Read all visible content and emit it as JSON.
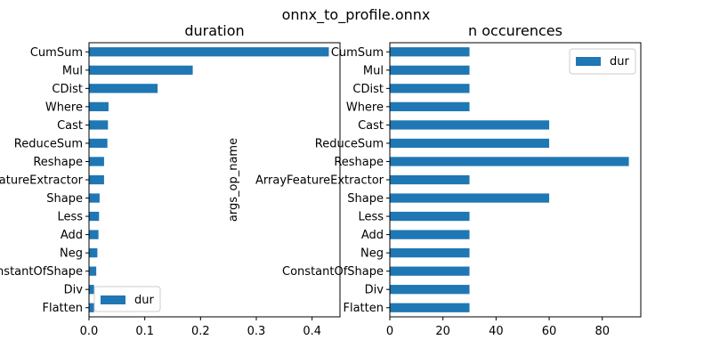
{
  "figure_title": "onnx_to_profile.onnx",
  "colors": {
    "bar": "#1f77b4",
    "axis": "#000000",
    "background": "#ffffff"
  },
  "chart_data": [
    {
      "type": "bar",
      "orientation": "horizontal",
      "title": "duration",
      "xlabel": "",
      "ylabel": "args_op_name",
      "categories": [
        "CumSum",
        "Mul",
        "CDist",
        "Where",
        "Cast",
        "ReduceSum",
        "Reshape",
        "ArrayFeatureExtractor",
        "Shape",
        "Less",
        "Add",
        "Neg",
        "ConstantOfShape",
        "Div",
        "Flatten"
      ],
      "series": [
        {
          "name": "dur",
          "values": [
            0.43,
            0.186,
            0.123,
            0.035,
            0.034,
            0.033,
            0.027,
            0.027,
            0.019,
            0.018,
            0.017,
            0.015,
            0.013,
            0.009,
            0.009
          ]
        }
      ],
      "xlim": [
        0,
        0.45
      ],
      "xticks": [
        0.0,
        0.1,
        0.2,
        0.3,
        0.4
      ],
      "xtick_labels": [
        "0.0",
        "0.1",
        "0.2",
        "0.3",
        "0.4"
      ],
      "legend": {
        "entries": [
          "dur"
        ],
        "position": "lower-left"
      }
    },
    {
      "type": "bar",
      "orientation": "horizontal",
      "title": "n occurences",
      "xlabel": "",
      "ylabel": "",
      "categories": [
        "CumSum",
        "Mul",
        "CDist",
        "Where",
        "Cast",
        "ReduceSum",
        "Reshape",
        "ArrayFeatureExtractor",
        "Shape",
        "Less",
        "Add",
        "Neg",
        "ConstantOfShape",
        "Div",
        "Flatten"
      ],
      "series": [
        {
          "name": "dur",
          "values": [
            30,
            30,
            30,
            30,
            60,
            60,
            90,
            30,
            60,
            30,
            30,
            30,
            30,
            30,
            30
          ]
        }
      ],
      "xlim": [
        0,
        94.5
      ],
      "xticks": [
        0,
        20,
        40,
        60,
        80
      ],
      "xtick_labels": [
        "0",
        "20",
        "40",
        "60",
        "80"
      ],
      "legend": {
        "entries": [
          "dur"
        ],
        "position": "upper-right"
      }
    }
  ]
}
